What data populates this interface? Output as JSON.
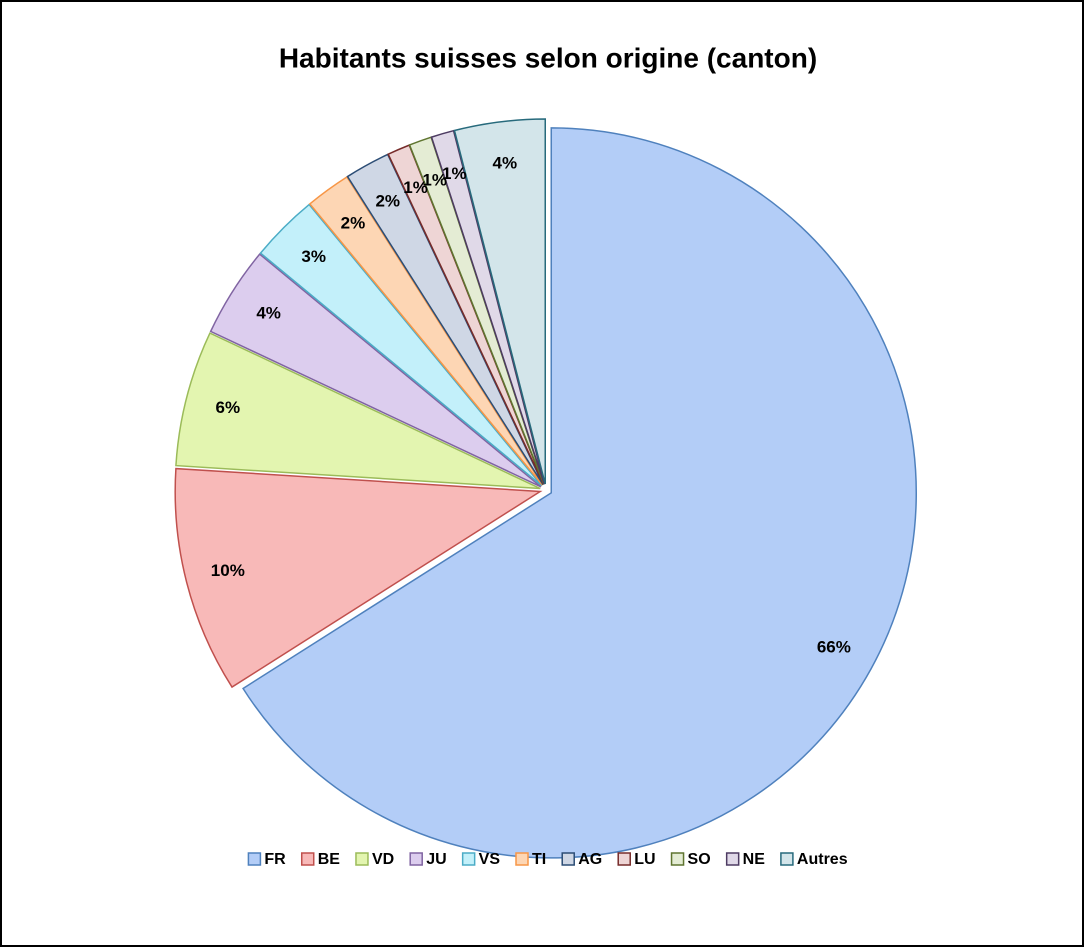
{
  "chart_data": {
    "type": "pie",
    "title": "Habitants suisses selon origine (canton)",
    "categories": [
      "FR",
      "BE",
      "VD",
      "JU",
      "VS",
      "TI",
      "AG",
      "LU",
      "SO",
      "NE",
      "Autres"
    ],
    "values": [
      66,
      10,
      6,
      4,
      3,
      2,
      2,
      1,
      1,
      1,
      4
    ],
    "value_labels": [
      "66%",
      "10%",
      "6%",
      "4%",
      "3%",
      "2%",
      "2%",
      "1%",
      "1%",
      "1%",
      "4%"
    ],
    "colors": [
      "#b3cdf7",
      "#f8b9b8",
      "#e3f5b0",
      "#dccdee",
      "#c3f0fa",
      "#fdd6b4",
      "#cfd7e5",
      "#eed5d5",
      "#e4ecd4",
      "#e0d9e8",
      "#d3e5ea"
    ],
    "stroke_colors": [
      "#4f81bd",
      "#c0504d",
      "#9bbb59",
      "#8064a2",
      "#4bacc6",
      "#f79646",
      "#2c4d75",
      "#772c2a",
      "#5f7530",
      "#4d3b62",
      "#276a7c"
    ],
    "legend": "bottom"
  }
}
